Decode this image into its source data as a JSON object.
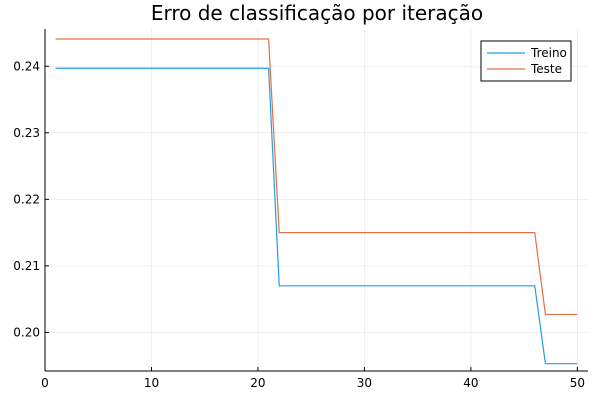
{
  "chart_data": {
    "type": "line",
    "title": "Erro de classificação por iteração",
    "xlabel": "",
    "ylabel": "",
    "xlim": [
      0,
      51
    ],
    "ylim": [
      0.1942,
      0.2456
    ],
    "xticks": [
      0,
      10,
      20,
      30,
      40,
      50
    ],
    "yticks": [
      0.2,
      0.21,
      0.22,
      0.23,
      0.24
    ],
    "grid": true,
    "legend_position": "top-right",
    "series": [
      {
        "name": "Treino",
        "color": "#1f9ee6",
        "x": [
          1,
          21,
          22,
          46,
          47,
          50
        ],
        "y": [
          0.2397,
          0.2397,
          0.207,
          0.207,
          0.1953,
          0.1953
        ]
      },
      {
        "name": "Teste",
        "color": "#e26f46",
        "x": [
          1,
          21,
          22,
          46,
          47,
          50
        ],
        "y": [
          0.2441,
          0.2441,
          0.215,
          0.215,
          0.2027,
          0.2027
        ]
      }
    ]
  }
}
